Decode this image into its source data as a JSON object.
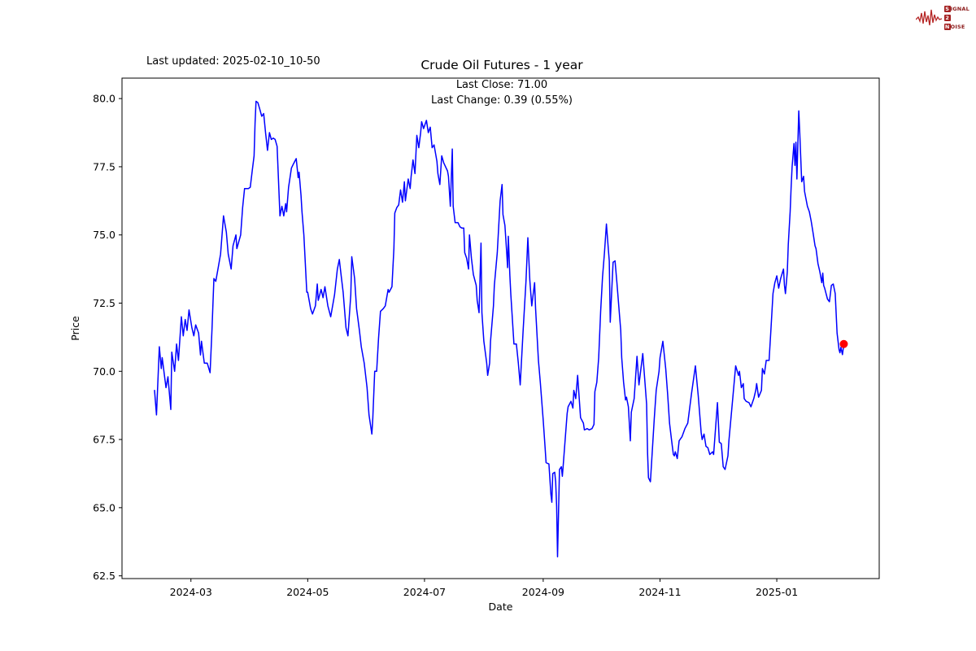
{
  "header": {
    "last_updated": "Last updated: 2025-02-10_10-50",
    "title": "Crude Oil Futures - 1 year",
    "subtitle_line1": "Last Close: 71.00",
    "subtitle_line2": "Last Change: 0.39 (0.55%)"
  },
  "logo": {
    "rows": [
      {
        "box": "S",
        "rest": "IGNAL"
      },
      {
        "box": "2",
        "rest": ""
      },
      {
        "box": "N",
        "rest": "OISE"
      }
    ],
    "wave_color": "#b52524"
  },
  "chart_data": {
    "type": "line",
    "title": "Crude Oil Futures - 1 year",
    "xlabel": "Date",
    "ylabel": "Price",
    "line_color": "#0000ff",
    "axis_color": "#000000",
    "epoch_note": "x values are days since 2024-02-11",
    "x_domain_days": [
      -17,
      378.5
    ],
    "y_domain": [
      62.4,
      80.75
    ],
    "x_ticks": [
      {
        "label": "2024-03",
        "day": 19
      },
      {
        "label": "2024-05",
        "day": 80
      },
      {
        "label": "2024-07",
        "day": 141
      },
      {
        "label": "2024-09",
        "day": 203
      },
      {
        "label": "2024-11",
        "day": 264
      },
      {
        "label": "2025-01",
        "day": 325
      }
    ],
    "y_ticks": [
      {
        "label": "80.0",
        "value": 80.0
      },
      {
        "label": "77.5",
        "value": 77.5
      },
      {
        "label": "75.0",
        "value": 75.0
      },
      {
        "label": "72.5",
        "value": 72.5
      },
      {
        "label": "70.0",
        "value": 70.0
      },
      {
        "label": "67.5",
        "value": 67.5
      },
      {
        "label": "65.0",
        "value": 65.0
      },
      {
        "label": "62.5",
        "value": 62.5
      }
    ],
    "last_close_marker": {
      "day": 360,
      "price": 71.0,
      "color": "#ff0000",
      "radius": 5
    },
    "points": [
      [
        0,
        69.3
      ],
      [
        1,
        68.4
      ],
      [
        2.5,
        70.9
      ],
      [
        3.5,
        70.1
      ],
      [
        4,
        70.5
      ],
      [
        6,
        69.4
      ],
      [
        7,
        69.8
      ],
      [
        8.5,
        68.6
      ],
      [
        9,
        70.7
      ],
      [
        10.5,
        70.0
      ],
      [
        11.5,
        71.0
      ],
      [
        12.5,
        70.4
      ],
      [
        14,
        72.0
      ],
      [
        15,
        71.3
      ],
      [
        16,
        71.9
      ],
      [
        17,
        71.5
      ],
      [
        18,
        72.25
      ],
      [
        19.5,
        71.6
      ],
      [
        20.5,
        71.3
      ],
      [
        21.5,
        71.7
      ],
      [
        23,
        71.4
      ],
      [
        24,
        70.6
      ],
      [
        24.5,
        71.1
      ],
      [
        26,
        70.3
      ],
      [
        27.5,
        70.3
      ],
      [
        29,
        69.95
      ],
      [
        30,
        71.5
      ],
      [
        31,
        73.4
      ],
      [
        32,
        73.3
      ],
      [
        33,
        73.7
      ],
      [
        34.5,
        74.3
      ],
      [
        36,
        75.7
      ],
      [
        37.5,
        75.1
      ],
      [
        38.5,
        74.3
      ],
      [
        40,
        73.75
      ],
      [
        41,
        74.6
      ],
      [
        42.5,
        75.0
      ],
      [
        43,
        74.5
      ],
      [
        45,
        75.0
      ],
      [
        46,
        76.0
      ],
      [
        47,
        76.7
      ],
      [
        49,
        76.7
      ],
      [
        50,
        76.75
      ],
      [
        51,
        77.35
      ],
      [
        52,
        77.9
      ],
      [
        52.5,
        79.1
      ],
      [
        53,
        79.9
      ],
      [
        54,
        79.85
      ],
      [
        55,
        79.6
      ],
      [
        56,
        79.35
      ],
      [
        57,
        79.45
      ],
      [
        58,
        78.75
      ],
      [
        59,
        78.1
      ],
      [
        60,
        78.75
      ],
      [
        61,
        78.5
      ],
      [
        62,
        78.55
      ],
      [
        63,
        78.5
      ],
      [
        64,
        78.25
      ],
      [
        65.5,
        75.7
      ],
      [
        66.5,
        76.05
      ],
      [
        67.5,
        75.7
      ],
      [
        68.5,
        76.15
      ],
      [
        69,
        75.85
      ],
      [
        70,
        76.75
      ],
      [
        71.5,
        77.45
      ],
      [
        72.5,
        77.6
      ],
      [
        74,
        77.8
      ],
      [
        75,
        77.1
      ],
      [
        75.5,
        77.3
      ],
      [
        76.5,
        76.45
      ],
      [
        77,
        75.85
      ],
      [
        78,
        75.0
      ],
      [
        79.5,
        72.9
      ],
      [
        80,
        72.9
      ],
      [
        81.5,
        72.3
      ],
      [
        82.5,
        72.1
      ],
      [
        83,
        72.2
      ],
      [
        84,
        72.4
      ],
      [
        85,
        73.2
      ],
      [
        85.5,
        72.6
      ],
      [
        87,
        73.0
      ],
      [
        88,
        72.7
      ],
      [
        89,
        73.1
      ],
      [
        90.5,
        72.4
      ],
      [
        92,
        72.0
      ],
      [
        94,
        72.8
      ],
      [
        95.5,
        73.75
      ],
      [
        96.5,
        74.1
      ],
      [
        97.5,
        73.5
      ],
      [
        98.5,
        72.9
      ],
      [
        100,
        71.6
      ],
      [
        101,
        71.3
      ],
      [
        102.5,
        72.8
      ],
      [
        103,
        74.2
      ],
      [
        104.5,
        73.4
      ],
      [
        105.5,
        72.3
      ],
      [
        107,
        71.5
      ],
      [
        108,
        70.9
      ],
      [
        109.5,
        70.3
      ],
      [
        111,
        69.4
      ],
      [
        112,
        68.4
      ],
      [
        113.5,
        67.7
      ],
      [
        114,
        68.3
      ],
      [
        115,
        70.0
      ],
      [
        116,
        70.0
      ],
      [
        117,
        71.2
      ],
      [
        118,
        72.2
      ],
      [
        119.5,
        72.3
      ],
      [
        120.5,
        72.4
      ],
      [
        122,
        73.0
      ],
      [
        122.5,
        72.9
      ],
      [
        124,
        73.1
      ],
      [
        125,
        74.5
      ],
      [
        125.5,
        75.8
      ],
      [
        126.5,
        76.0
      ],
      [
        127.5,
        76.1
      ],
      [
        128.5,
        76.65
      ],
      [
        129.5,
        76.2
      ],
      [
        130.5,
        76.95
      ],
      [
        131,
        76.25
      ],
      [
        132.5,
        77.05
      ],
      [
        133.5,
        76.7
      ],
      [
        134,
        77.15
      ],
      [
        135,
        77.75
      ],
      [
        136,
        77.25
      ],
      [
        137,
        78.65
      ],
      [
        138,
        78.2
      ],
      [
        139,
        78.75
      ],
      [
        139.5,
        79.15
      ],
      [
        140.5,
        78.9
      ],
      [
        142,
        79.2
      ],
      [
        143,
        78.75
      ],
      [
        144,
        78.95
      ],
      [
        145,
        78.2
      ],
      [
        146,
        78.3
      ],
      [
        147.5,
        77.7
      ],
      [
        148,
        77.25
      ],
      [
        149,
        76.85
      ],
      [
        150,
        77.9
      ],
      [
        151,
        77.65
      ],
      [
        152,
        77.5
      ],
      [
        153,
        77.35
      ],
      [
        153.5,
        77.15
      ],
      [
        154.5,
        76.05
      ],
      [
        155.5,
        78.15
      ],
      [
        156,
        76.05
      ],
      [
        157,
        75.45
      ],
      [
        158.5,
        75.45
      ],
      [
        159.5,
        75.3
      ],
      [
        160.5,
        75.25
      ],
      [
        161.5,
        75.25
      ],
      [
        162,
        74.35
      ],
      [
        163,
        74.15
      ],
      [
        164,
        73.75
      ],
      [
        164.5,
        75.0
      ],
      [
        165.5,
        74.15
      ],
      [
        166.5,
        73.55
      ],
      [
        168,
        73.15
      ],
      [
        168.5,
        72.6
      ],
      [
        169.5,
        72.15
      ],
      [
        170.5,
        74.7
      ],
      [
        171,
        72.15
      ],
      [
        172,
        71.1
      ],
      [
        173.5,
        70.3
      ],
      [
        174,
        69.85
      ],
      [
        175,
        70.3
      ],
      [
        175.5,
        71.1
      ],
      [
        177,
        72.4
      ],
      [
        177.5,
        73.15
      ],
      [
        179,
        74.35
      ],
      [
        180.5,
        76.25
      ],
      [
        181.5,
        76.85
      ],
      [
        182,
        75.75
      ],
      [
        183,
        75.35
      ],
      [
        183.9,
        74.4
      ],
      [
        184.4,
        73.8
      ],
      [
        184.8,
        74.95
      ],
      [
        185.6,
        73.5
      ],
      [
        186.1,
        72.8
      ],
      [
        187.7,
        71.0
      ],
      [
        189,
        71.0
      ],
      [
        190,
        70.3
      ],
      [
        191,
        69.5
      ],
      [
        192.5,
        71.5
      ],
      [
        194,
        73.3
      ],
      [
        195,
        74.9
      ],
      [
        196,
        73.35
      ],
      [
        197,
        72.4
      ],
      [
        198.5,
        73.25
      ],
      [
        199,
        72.3
      ],
      [
        200.5,
        70.4
      ],
      [
        201.5,
        69.6
      ],
      [
        203,
        68.2
      ],
      [
        204,
        67.2
      ],
      [
        204.5,
        66.65
      ],
      [
        206,
        66.6
      ],
      [
        207,
        65.5
      ],
      [
        207.5,
        65.2
      ],
      [
        208,
        66.25
      ],
      [
        209,
        66.3
      ],
      [
        209.5,
        65.95
      ],
      [
        210,
        65.05
      ],
      [
        210.5,
        63.2
      ],
      [
        211.5,
        66.4
      ],
      [
        212.5,
        66.5
      ],
      [
        213,
        66.15
      ],
      [
        213.5,
        66.6
      ],
      [
        215.5,
        68.45
      ],
      [
        216,
        68.7
      ],
      [
        217.5,
        68.9
      ],
      [
        218.5,
        68.65
      ],
      [
        219,
        69.3
      ],
      [
        220,
        69.0
      ],
      [
        221,
        69.85
      ],
      [
        222.5,
        68.3
      ],
      [
        224,
        68.1
      ],
      [
        224.5,
        67.85
      ],
      [
        226,
        67.9
      ],
      [
        227,
        67.85
      ],
      [
        228.5,
        67.9
      ],
      [
        229.5,
        68.05
      ],
      [
        230,
        69.25
      ],
      [
        231,
        69.6
      ],
      [
        232,
        70.5
      ],
      [
        233,
        72.2
      ],
      [
        234,
        73.45
      ],
      [
        235,
        74.35
      ],
      [
        236,
        75.4
      ],
      [
        237,
        74.5
      ],
      [
        237.5,
        74.05
      ],
      [
        238,
        71.8
      ],
      [
        239.5,
        74.0
      ],
      [
        240.5,
        74.05
      ],
      [
        241.5,
        73.25
      ],
      [
        242.5,
        72.35
      ],
      [
        243.5,
        71.5
      ],
      [
        244,
        70.5
      ],
      [
        245,
        69.6
      ],
      [
        246,
        68.95
      ],
      [
        246.5,
        69.05
      ],
      [
        247.5,
        68.7
      ],
      [
        248.5,
        67.45
      ],
      [
        249,
        68.5
      ],
      [
        250.5,
        69.0
      ],
      [
        252,
        70.55
      ],
      [
        253,
        69.5
      ],
      [
        255,
        70.65
      ],
      [
        257,
        68.8
      ],
      [
        257.5,
        67.0
      ],
      [
        258,
        66.1
      ],
      [
        259,
        65.95
      ],
      [
        261,
        68.25
      ],
      [
        262,
        69.3
      ],
      [
        263.5,
        70.0
      ],
      [
        264,
        70.5
      ],
      [
        265.5,
        71.1
      ],
      [
        267,
        70.1
      ],
      [
        268,
        69.15
      ],
      [
        269,
        68.1
      ],
      [
        270,
        67.5
      ],
      [
        271,
        66.95
      ],
      [
        271.5,
        66.9
      ],
      [
        272,
        67.05
      ],
      [
        273,
        66.8
      ],
      [
        274,
        67.45
      ],
      [
        275.5,
        67.6
      ],
      [
        277,
        67.9
      ],
      [
        278.5,
        68.1
      ],
      [
        280.5,
        69.2
      ],
      [
        282.5,
        70.2
      ],
      [
        284,
        69.1
      ],
      [
        285.5,
        67.75
      ],
      [
        286,
        67.5
      ],
      [
        287,
        67.7
      ],
      [
        288,
        67.25
      ],
      [
        289,
        67.2
      ],
      [
        290,
        66.95
      ],
      [
        291.5,
        67.05
      ],
      [
        292,
        66.95
      ],
      [
        294,
        68.85
      ],
      [
        295,
        67.4
      ],
      [
        296,
        67.35
      ],
      [
        297,
        66.5
      ],
      [
        298,
        66.4
      ],
      [
        299.5,
        66.9
      ],
      [
        300,
        67.45
      ],
      [
        302,
        69.0
      ],
      [
        303.5,
        70.2
      ],
      [
        305,
        69.85
      ],
      [
        305.5,
        70.0
      ],
      [
        306.5,
        69.4
      ],
      [
        307.5,
        69.55
      ],
      [
        308,
        69.0
      ],
      [
        309,
        68.9
      ],
      [
        310.5,
        68.85
      ],
      [
        311.5,
        68.7
      ],
      [
        313,
        69.0
      ],
      [
        314,
        69.3
      ],
      [
        314.5,
        69.55
      ],
      [
        315.5,
        69.05
      ],
      [
        317,
        69.3
      ],
      [
        317.5,
        70.1
      ],
      [
        318.5,
        69.9
      ],
      [
        319.5,
        70.4
      ],
      [
        321,
        70.4
      ],
      [
        322,
        71.6
      ],
      [
        323,
        72.85
      ],
      [
        324,
        73.25
      ],
      [
        325,
        73.5
      ],
      [
        326,
        73.05
      ],
      [
        327,
        73.4
      ],
      [
        328.5,
        73.75
      ],
      [
        329,
        73.15
      ],
      [
        329.5,
        72.85
      ],
      [
        330.5,
        73.65
      ],
      [
        331,
        74.65
      ],
      [
        332,
        75.85
      ],
      [
        332.5,
        76.75
      ],
      [
        333,
        77.5
      ],
      [
        334,
        78.35
      ],
      [
        334.5,
        77.55
      ],
      [
        335,
        78.4
      ],
      [
        335.5,
        77.05
      ],
      [
        336.5,
        79.55
      ],
      [
        337,
        78.75
      ],
      [
        338,
        76.95
      ],
      [
        339,
        77.15
      ],
      [
        339.5,
        76.6
      ],
      [
        341,
        76.05
      ],
      [
        342,
        75.85
      ],
      [
        343,
        75.5
      ],
      [
        344,
        75.05
      ],
      [
        345,
        74.6
      ],
      [
        345.5,
        74.5
      ],
      [
        346.5,
        73.95
      ],
      [
        347.5,
        73.65
      ],
      [
        348.5,
        73.25
      ],
      [
        349,
        73.6
      ],
      [
        349.5,
        73.15
      ],
      [
        350,
        73.05
      ],
      [
        351.5,
        72.65
      ],
      [
        352.5,
        72.55
      ],
      [
        353.5,
        73.15
      ],
      [
        354.5,
        73.2
      ],
      [
        355.5,
        72.85
      ],
      [
        356.5,
        71.4
      ],
      [
        357.5,
        70.8
      ],
      [
        358,
        70.68
      ],
      [
        358.5,
        70.88
      ],
      [
        359.3,
        70.61
      ],
      [
        360,
        71.0
      ]
    ]
  }
}
